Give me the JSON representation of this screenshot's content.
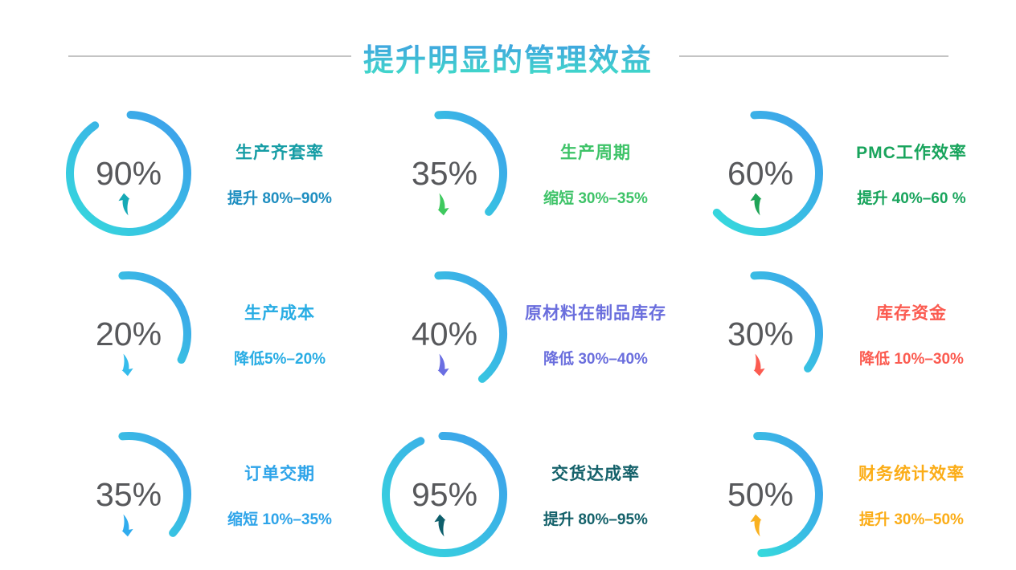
{
  "header": {
    "title": "提升明显的管理效益"
  },
  "theme": {
    "background": "#FFFFFF",
    "title_gradient_top": "#3E96E6",
    "title_gradient_bottom": "#41E0C6",
    "divider_color": "#C4C4C4",
    "percent_color": "#57585B",
    "arc_gradient_blue": "#3D9CEC",
    "arc_gradient_cyan": "#35DADC"
  },
  "chart_data": [
    {
      "type": "pie",
      "gauge_style": "arc-ring",
      "label": "生产齐套率",
      "percent": 90,
      "percent_label": "90%",
      "direction": "up",
      "annotation": "提升 80%–90%",
      "title_color": "#169DA5",
      "desc_color": "#1E8EC0",
      "arrow_color": "#16A9B6",
      "arc_start_deg": 2,
      "arc_end_deg": 325
    },
    {
      "type": "pie",
      "gauge_style": "arc-ring",
      "label": "生产周期",
      "percent": 35,
      "percent_label": "35%",
      "direction": "down",
      "annotation": "缩短 30%–35%",
      "title_color": "#3EC368",
      "desc_color": "#3EC368",
      "arrow_color": "#3EC95E",
      "arc_start_deg": -6,
      "arc_end_deg": 131
    },
    {
      "type": "pie",
      "gauge_style": "arc-ring",
      "label": "PMC工作效率",
      "percent": 60,
      "percent_label": "60%",
      "direction": "up",
      "annotation": "提升 40%–60 %",
      "title_color": "#18A45C",
      "desc_color": "#18A45C",
      "arrow_color": "#1FA457",
      "arc_start_deg": -6,
      "arc_end_deg": 228
    },
    {
      "type": "pie",
      "gauge_style": "arc-ring",
      "label": "生产成本",
      "percent": 20,
      "percent_label": "20%",
      "direction": "down",
      "annotation": "降低5%–20%",
      "title_color": "#29ADE4",
      "desc_color": "#29ADE4",
      "arrow_color": "#35BCEC",
      "arc_start_deg": -6,
      "arc_end_deg": 116
    },
    {
      "type": "pie",
      "gauge_style": "arc-ring",
      "label": "原材料在制品库存",
      "percent": 40,
      "percent_label": "40%",
      "direction": "down",
      "annotation": "降低 30%–40%",
      "title_color": "#6A6EDD",
      "desc_color": "#6A6EDD",
      "arrow_color": "#6A6EE2",
      "arc_start_deg": -6,
      "arc_end_deg": 140
    },
    {
      "type": "pie",
      "gauge_style": "arc-ring",
      "label": "库存资金",
      "percent": 30,
      "percent_label": "30%",
      "direction": "down",
      "annotation": "降低 10%–30%",
      "title_color": "#FB5B50",
      "desc_color": "#FB5B50",
      "arrow_color": "#FB5B50",
      "arc_start_deg": -6,
      "arc_end_deg": 126
    },
    {
      "type": "pie",
      "gauge_style": "arc-ring",
      "label": "订单交期",
      "percent": 35,
      "percent_label": "35%",
      "direction": "down",
      "annotation": "缩短 10%–35%",
      "title_color": "#2EA4E9",
      "desc_color": "#2EA4E9",
      "arrow_color": "#30ACEE",
      "arc_start_deg": -6,
      "arc_end_deg": 131
    },
    {
      "type": "pie",
      "gauge_style": "arc-ring",
      "label": "交货达成率",
      "percent": 95,
      "percent_label": "95%",
      "direction": "up",
      "annotation": "提升 80%–95%",
      "title_color": "#14616A",
      "desc_color": "#14616A",
      "arrow_color": "#0E5F6C",
      "arc_start_deg": -2,
      "arc_end_deg": 336
    },
    {
      "type": "pie",
      "gauge_style": "arc-ring",
      "label": "财务统计效率",
      "percent": 50,
      "percent_label": "50%",
      "direction": "up",
      "annotation": "提升 30%–50%",
      "title_color": "#FBAD18",
      "desc_color": "#FBAD18",
      "arrow_color": "#F9B120",
      "arc_start_deg": -3,
      "arc_end_deg": 179
    }
  ]
}
